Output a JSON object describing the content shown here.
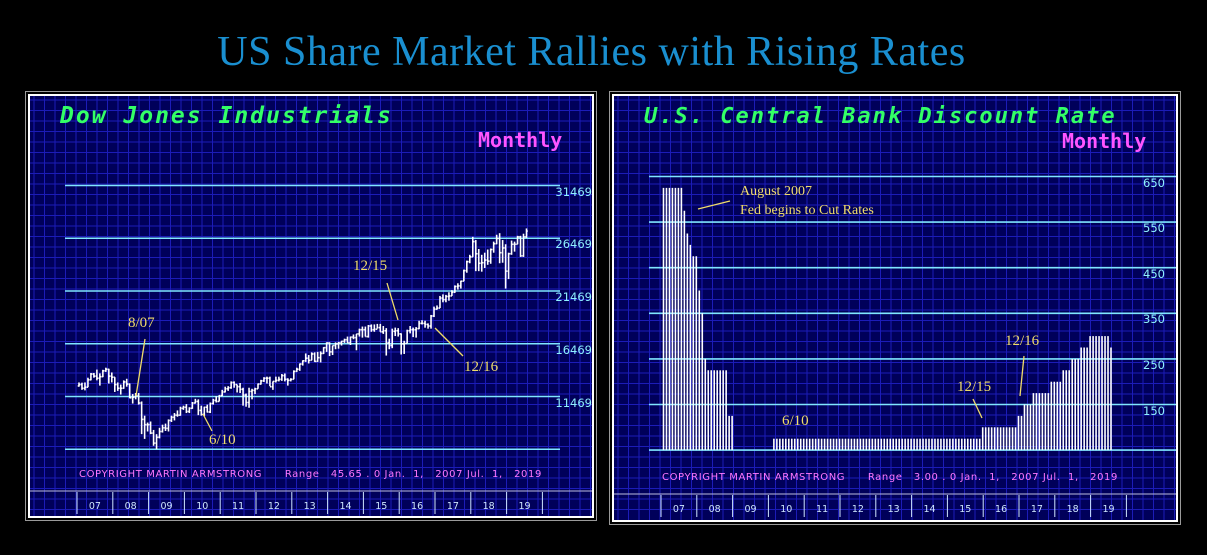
{
  "main_title": "US Share Market Rallies with Rising Rates",
  "colors": {
    "title": "#1a8fd0",
    "grid": "#1c1cb8",
    "background": "#00005a",
    "level_lines": "#7fe6ff",
    "bars": "#ffffff",
    "chart_title": "#33ff66",
    "period": "#ff55ff",
    "annotation": "#f0dc6a"
  },
  "chart_data": [
    {
      "type": "bar",
      "title": "Dow Jones Industrials",
      "period_label": "Monthly",
      "copyright": "COPYRIGHT MARTIN ARMSTRONG      Range   45.65 . 0 Jan.  1,   2007 Jul.  1,   2019",
      "y_levels": [
        31469,
        26469,
        21469,
        16469,
        11469
      ],
      "y_level_labels": [
        "31469",
        "26469",
        "21469",
        "16469",
        "11469"
      ],
      "ylim": [
        6469,
        33469
      ],
      "x_ticks": [
        "07",
        "08",
        "09",
        "10",
        "11",
        "12",
        "13",
        "14",
        "15",
        "16",
        "17",
        "18",
        "19"
      ],
      "x_start_year": 2007,
      "ohlc_monthly": [
        [
          12470,
          12800,
          12400,
          12600
        ],
        [
          12600,
          12780,
          12100,
          12250
        ],
        [
          12250,
          12800,
          12050,
          12350
        ],
        [
          12350,
          13250,
          12350,
          13050
        ],
        [
          13050,
          13700,
          13000,
          13600
        ],
        [
          13600,
          13700,
          13250,
          13400
        ],
        [
          13400,
          14020,
          13000,
          13200
        ],
        [
          13200,
          13660,
          12500,
          13350
        ],
        [
          13350,
          14000,
          13300,
          13900
        ],
        [
          13900,
          14200,
          13800,
          14050
        ],
        [
          14050,
          14100,
          12700,
          13400
        ],
        [
          13400,
          13750,
          12800,
          13300
        ],
        [
          13300,
          13300,
          11900,
          12600
        ],
        [
          12600,
          12800,
          12000,
          12250
        ],
        [
          12250,
          12600,
          11650,
          12250
        ],
        [
          12250,
          13000,
          12200,
          12850
        ],
        [
          12850,
          13150,
          12400,
          12650
        ],
        [
          12650,
          12700,
          11300,
          11350
        ],
        [
          11350,
          11700,
          10800,
          11400
        ],
        [
          11400,
          11800,
          11200,
          11550
        ],
        [
          11550,
          11800,
          10700,
          10850
        ],
        [
          10850,
          11000,
          7900,
          9300
        ],
        [
          9300,
          9650,
          7450,
          8800
        ],
        [
          8800,
          9000,
          8150,
          8800
        ],
        [
          8800,
          9100,
          7900,
          8000
        ],
        [
          8000,
          8300,
          6800,
          7050
        ],
        [
          7050,
          7900,
          6469,
          7600
        ],
        [
          7600,
          8500,
          7500,
          8150
        ],
        [
          8150,
          8800,
          8050,
          8500
        ],
        [
          8500,
          8900,
          8200,
          8450
        ],
        [
          8450,
          9300,
          8150,
          9200
        ],
        [
          9200,
          9650,
          9050,
          9500
        ],
        [
          9500,
          9900,
          9200,
          9700
        ],
        [
          9700,
          10150,
          9550,
          9700
        ],
        [
          9700,
          10500,
          9650,
          10350
        ],
        [
          10350,
          10600,
          10200,
          10450
        ],
        [
          10450,
          10750,
          9900,
          10050
        ],
        [
          10050,
          10450,
          9900,
          10350
        ],
        [
          10350,
          10950,
          10300,
          10850
        ],
        [
          10850,
          11250,
          10800,
          11000
        ],
        [
          11000,
          11200,
          9700,
          10150
        ],
        [
          10150,
          10600,
          9650,
          9770
        ],
        [
          9770,
          10500,
          9600,
          10450
        ],
        [
          10450,
          10700,
          9950,
          10000
        ],
        [
          10000,
          10900,
          9900,
          10800
        ],
        [
          10800,
          11250,
          10700,
          11100
        ],
        [
          11100,
          11500,
          10900,
          11000
        ],
        [
          11000,
          11600,
          11000,
          11550
        ],
        [
          11550,
          12100,
          11500,
          11900
        ],
        [
          11900,
          12400,
          11850,
          12200
        ],
        [
          12200,
          12450,
          12000,
          12300
        ],
        [
          12300,
          12900,
          12200,
          12800
        ],
        [
          12800,
          12900,
          12300,
          12600
        ],
        [
          12600,
          12600,
          11850,
          12400
        ],
        [
          12400,
          12750,
          11800,
          12150
        ],
        [
          12150,
          12300,
          10600,
          11600
        ],
        [
          11600,
          11750,
          10500,
          10900
        ],
        [
          10900,
          12300,
          10400,
          11950
        ],
        [
          11950,
          12200,
          11200,
          12050
        ],
        [
          12050,
          12300,
          11700,
          12200
        ],
        [
          12200,
          12700,
          12200,
          12650
        ],
        [
          12650,
          13050,
          12600,
          12950
        ],
        [
          12950,
          13300,
          12850,
          13200
        ],
        [
          13200,
          13350,
          12700,
          13200
        ],
        [
          13200,
          13350,
          12450,
          12400
        ],
        [
          12400,
          12900,
          12100,
          12900
        ],
        [
          12900,
          13350,
          12800,
          13000
        ],
        [
          13000,
          13350,
          12900,
          13100
        ],
        [
          13100,
          13600,
          12950,
          13450
        ],
        [
          13450,
          13650,
          12900,
          13100
        ],
        [
          13100,
          13200,
          12500,
          13000
        ],
        [
          13000,
          13200,
          12900,
          13100
        ],
        [
          13100,
          13950,
          13100,
          13850
        ],
        [
          13850,
          14200,
          13800,
          14050
        ],
        [
          14050,
          14600,
          13900,
          14550
        ],
        [
          14550,
          14900,
          14400,
          14850
        ],
        [
          14850,
          15550,
          14750,
          15100
        ],
        [
          15100,
          15400,
          14600,
          14900
        ],
        [
          14900,
          15650,
          14900,
          15500
        ],
        [
          15500,
          15650,
          14750,
          14800
        ],
        [
          14800,
          15700,
          14750,
          15150
        ],
        [
          15150,
          15750,
          14700,
          15550
        ],
        [
          15550,
          16150,
          15500,
          16100
        ],
        [
          16100,
          16600,
          15700,
          16550
        ],
        [
          16550,
          16600,
          15300,
          15700
        ],
        [
          15700,
          16300,
          15400,
          16300
        ],
        [
          16300,
          16600,
          15950,
          16450
        ],
        [
          16450,
          16650,
          16000,
          16550
        ],
        [
          16550,
          16750,
          16300,
          16700
        ],
        [
          16700,
          16950,
          16550,
          16850
        ],
        [
          16850,
          17150,
          16550,
          16550
        ],
        [
          16550,
          17150,
          16350,
          17100
        ],
        [
          17100,
          17350,
          16900,
          17050
        ],
        [
          17050,
          17400,
          15850,
          17400
        ],
        [
          17400,
          17900,
          17150,
          17800
        ],
        [
          17800,
          18100,
          17050,
          17800
        ],
        [
          17800,
          18100,
          17150,
          17150
        ],
        [
          17150,
          18250,
          17050,
          18150
        ],
        [
          18150,
          18300,
          17600,
          17800
        ],
        [
          17800,
          18300,
          17600,
          17850
        ],
        [
          17850,
          18350,
          17900,
          18000
        ],
        [
          18000,
          18350,
          17600,
          17600
        ],
        [
          17600,
          18150,
          17400,
          17700
        ],
        [
          17700,
          17950,
          15350,
          16550
        ],
        [
          16550,
          16950,
          15950,
          16300
        ],
        [
          16300,
          17900,
          16050,
          17650
        ],
        [
          17650,
          18000,
          17200,
          17700
        ],
        [
          17700,
          17950,
          17150,
          17400
        ],
        [
          17400,
          17450,
          15450,
          16450
        ],
        [
          16450,
          16750,
          15500,
          16500
        ],
        [
          16500,
          17800,
          16500,
          17700
        ],
        [
          17700,
          18150,
          17450,
          17800
        ],
        [
          17800,
          18000,
          17100,
          17800
        ],
        [
          17800,
          18050,
          17050,
          17900
        ],
        [
          17900,
          18650,
          17850,
          18400
        ],
        [
          18400,
          18700,
          18300,
          18400
        ],
        [
          18400,
          18650,
          17990,
          18300
        ],
        [
          18300,
          18400,
          17900,
          18150
        ],
        [
          18150,
          19200,
          17900,
          19100
        ],
        [
          19100,
          19990,
          19000,
          19750
        ],
        [
          19750,
          20100,
          19700,
          19850
        ],
        [
          19850,
          21000,
          19850,
          20800
        ],
        [
          20800,
          21150,
          20400,
          20650
        ],
        [
          20650,
          21100,
          20400,
          20950
        ],
        [
          20950,
          21350,
          20550,
          21000
        ],
        [
          21000,
          21550,
          21000,
          21350
        ],
        [
          21350,
          22000,
          21300,
          21900
        ],
        [
          21900,
          22200,
          21600,
          21950
        ],
        [
          21950,
          22450,
          21700,
          22400
        ],
        [
          22400,
          23500,
          22400,
          23400
        ],
        [
          23400,
          24350,
          23200,
          24250
        ],
        [
          24250,
          24900,
          24100,
          24700
        ],
        [
          24700,
          26600,
          24700,
          26150
        ],
        [
          26150,
          26300,
          23350,
          25000
        ],
        [
          25000,
          25450,
          23350,
          24100
        ],
        [
          24100,
          24900,
          23300,
          24150
        ],
        [
          24150,
          25100,
          23650,
          24400
        ],
        [
          24400,
          25400,
          23950,
          24300
        ],
        [
          24300,
          25500,
          24050,
          25400
        ],
        [
          25400,
          26150,
          25100,
          25950
        ],
        [
          25950,
          26800,
          25900,
          26450
        ],
        [
          26450,
          26950,
          24100,
          25100
        ],
        [
          25100,
          26300,
          24150,
          25550
        ],
        [
          25550,
          25900,
          21700,
          23350
        ],
        [
          23350,
          25100,
          22600,
          25000
        ],
        [
          25000,
          26250,
          24900,
          25900
        ],
        [
          25900,
          26150,
          25200,
          25900
        ],
        [
          25900,
          26700,
          25900,
          26600
        ],
        [
          26600,
          26700,
          24700,
          24800
        ],
        [
          24800,
          26900,
          24700,
          26600
        ],
        [
          26600,
          27400,
          26500,
          27150
        ]
      ],
      "annotations": [
        "8/07",
        "6/10",
        "12/15",
        "12/16"
      ]
    },
    {
      "type": "bar",
      "title": "U.S. Central Bank Discount Rate",
      "period_label": "Monthly",
      "copyright": "COPYRIGHT MARTIN ARMSTRONG      Range   3.00 . 0 Jan.  1,   2007 Jul.  1,   2019",
      "y_levels": [
        650,
        550,
        450,
        350,
        250,
        150
      ],
      "y_level_labels": [
        "650",
        "550",
        "450",
        "350",
        "250",
        "150"
      ],
      "ylim": [
        50,
        700
      ],
      "x_ticks": [
        "07",
        "08",
        "09",
        "10",
        "11",
        "12",
        "13",
        "14",
        "15",
        "16",
        "17",
        "18",
        "19"
      ],
      "x_start_year": 2007,
      "monthly_values": [
        625,
        625,
        625,
        625,
        625,
        625,
        625,
        575,
        525,
        500,
        475,
        475,
        400,
        350,
        250,
        225,
        225,
        225,
        225,
        225,
        225,
        225,
        125,
        125,
        50,
        50,
        50,
        50,
        50,
        50,
        50,
        50,
        50,
        50,
        50,
        50,
        50,
        75,
        75,
        75,
        75,
        75,
        75,
        75,
        75,
        75,
        75,
        75,
        75,
        75,
        75,
        75,
        75,
        75,
        75,
        75,
        75,
        75,
        75,
        75,
        75,
        75,
        75,
        75,
        75,
        75,
        75,
        75,
        75,
        75,
        75,
        75,
        75,
        75,
        75,
        75,
        75,
        75,
        75,
        75,
        75,
        75,
        75,
        75,
        75,
        75,
        75,
        75,
        75,
        75,
        75,
        75,
        75,
        75,
        75,
        75,
        75,
        75,
        75,
        75,
        75,
        75,
        75,
        75,
        75,
        75,
        75,
        100,
        100,
        100,
        100,
        100,
        100,
        100,
        100,
        100,
        100,
        100,
        100,
        125,
        125,
        150,
        150,
        150,
        175,
        175,
        175,
        175,
        175,
        175,
        200,
        200,
        200,
        200,
        225,
        225,
        225,
        250,
        250,
        250,
        275,
        275,
        275,
        300,
        300,
        300,
        300,
        300,
        300,
        300,
        275
      ],
      "annotations": [
        "August 2007\nFed begins to Cut Rates",
        "6/10",
        "12/15",
        "12/16"
      ]
    }
  ],
  "labels": {
    "left": {
      "title": "Dow Jones Industrials",
      "period": "Monthly",
      "copyright": "COPYRIGHT MARTIN ARMSTRONG      Range   45.65 . 0 Jan.  1,   2007 Jul.  1,   2019",
      "ann_807": "8/07",
      "ann_610": "6/10",
      "ann_1215": "12/15",
      "ann_1216": "12/16"
    },
    "right": {
      "title": "U.S. Central Bank Discount Rate",
      "period": "Monthly",
      "copyright": "COPYRIGHT MARTIN ARMSTRONG      Range   3.00 . 0 Jan.  1,   2007 Jul.  1,   2019",
      "ann_aug_line1": "August 2007",
      "ann_aug_line2": "Fed begins to Cut Rates",
      "ann_610": "6/10",
      "ann_1215": "12/15",
      "ann_1216": "12/16"
    }
  }
}
